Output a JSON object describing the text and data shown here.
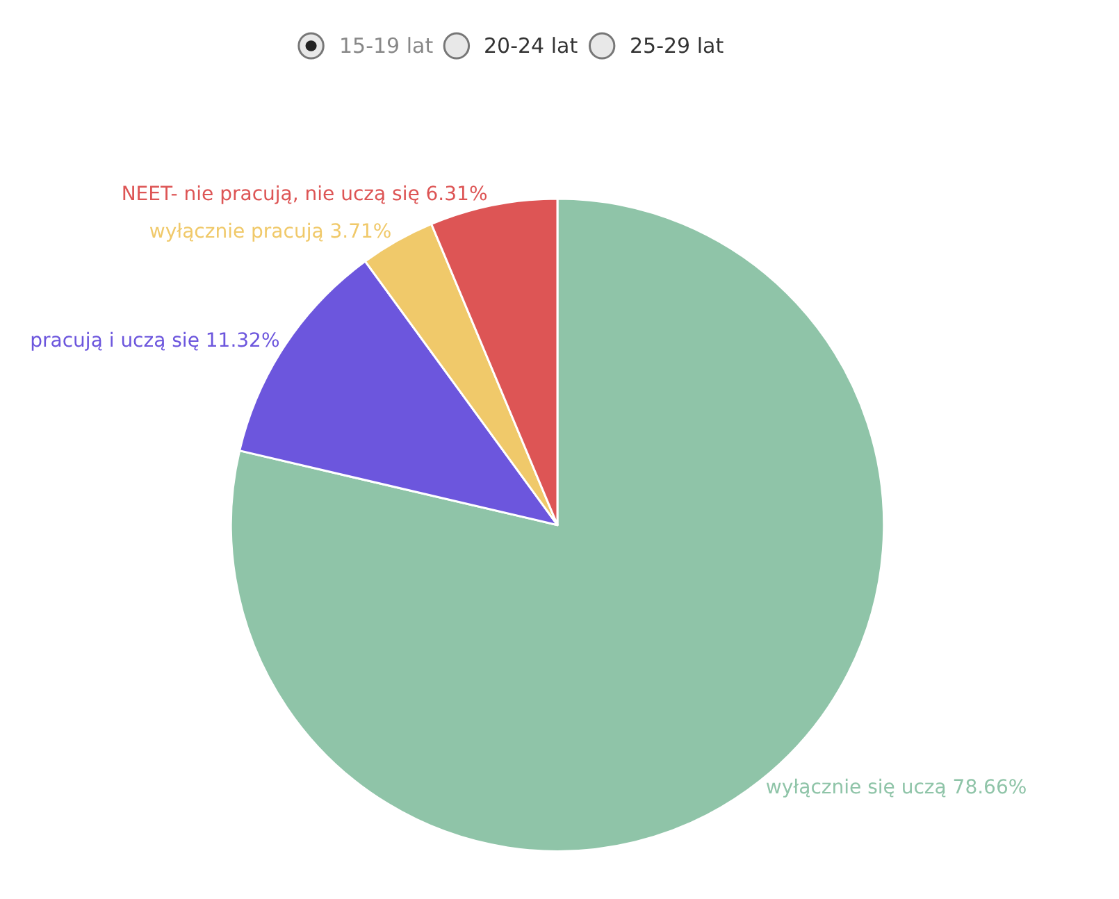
{
  "chart_data": {
    "type": "pie",
    "categories": [
      "wyłącznie się uczą",
      "pracują i uczą się",
      "wyłącznie pracują",
      "NEET- nie pracują, nie uczą się"
    ],
    "values": [
      78.66,
      11.32,
      3.71,
      6.31
    ],
    "value_labels": [
      "78.66%",
      "11.32%",
      "3.71%",
      "6.31%"
    ],
    "colors": [
      "#8fc4a8",
      "#6c56dd",
      "#f0c96a",
      "#dd5555"
    ],
    "annotations": [
      "15-19 lat",
      "20-24 lat",
      "25-29 lat"
    ],
    "legend": false
  }
}
